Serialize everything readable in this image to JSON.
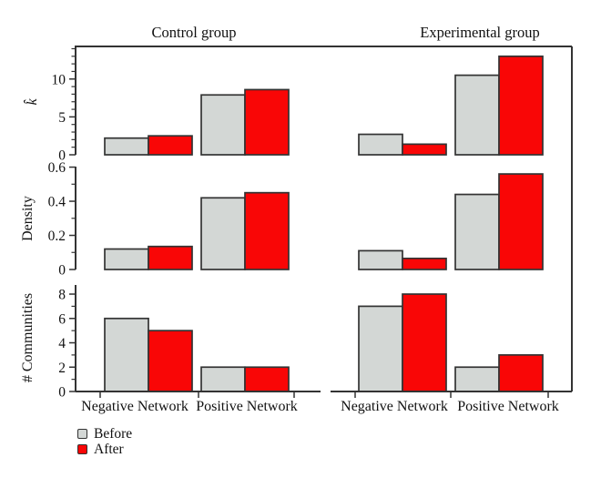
{
  "chart_data": {
    "type": "bar",
    "groups": [
      {
        "title": "Control group"
      },
      {
        "title": "Experimental group"
      }
    ],
    "categories": [
      "Negative Network",
      "Positive Network"
    ],
    "series": [
      {
        "name": "Before",
        "color": "#d3d7d5"
      },
      {
        "name": "After",
        "color": "#f90606"
      }
    ],
    "bar_outline_color": "#333333",
    "axis_color": "#333333",
    "legend_position": "bottom-left",
    "grid": false,
    "rows": [
      {
        "ylabel": "k̂",
        "ylim": [
          0,
          14.3
        ],
        "yticks": [
          0,
          5,
          10
        ],
        "ytick_labels": [
          "0",
          "5",
          "10"
        ],
        "minor_tick_step": 1,
        "values_by_group_category_series": [
          [
            [
              2.2,
              2.5
            ],
            [
              7.9,
              8.6
            ]
          ],
          [
            [
              2.7,
              1.4
            ],
            [
              10.5,
              13
            ]
          ]
        ]
      },
      {
        "ylabel": "Density",
        "ylim": [
          0,
          0.603
        ],
        "yticks": [
          0,
          0.2,
          0.4,
          0.6
        ],
        "ytick_labels": [
          "0",
          "0.2",
          "0.4",
          "0.6"
        ],
        "minor_tick_step": 0.1,
        "values_by_group_category_series": [
          [
            [
              0.12,
              0.135
            ],
            [
              0.42,
              0.45
            ]
          ],
          [
            [
              0.11,
              0.065
            ],
            [
              0.44,
              0.56
            ]
          ]
        ]
      },
      {
        "ylabel": "# Communities",
        "ylim": [
          0,
          8.75
        ],
        "yticks": [
          0,
          2,
          4,
          6,
          8
        ],
        "ytick_labels": [
          "0",
          "2",
          "4",
          "6",
          "8"
        ],
        "minor_tick_step": 1,
        "values_by_group_category_series": [
          [
            [
              6,
              5
            ],
            [
              2,
              2
            ]
          ],
          [
            [
              7,
              8
            ],
            [
              2,
              3
            ]
          ]
        ]
      }
    ]
  }
}
